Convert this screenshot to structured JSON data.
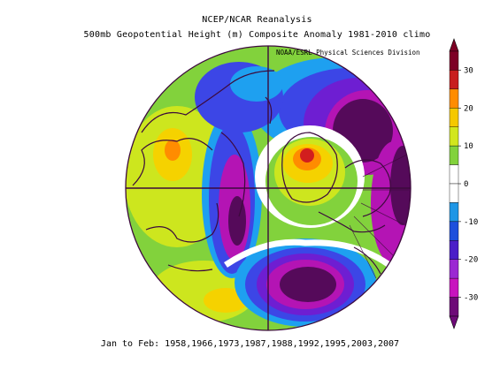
{
  "title_line1": "NCEP/NCAR Reanalysis",
  "title_line2": "500mb Geopotential Height (m) Composite Anomaly 1981-2010 climo",
  "credit": "NOAA/ESRL Physical Sciences Division",
  "footer": "Jan to Feb: 1958,1966,1973,1987,1988,1992,1995,2003,2007",
  "colorbar": {
    "ticks": [
      "30",
      "20",
      "10",
      "0",
      "-10",
      "-20",
      "-30"
    ],
    "colors": [
      "#7d0025",
      "#c81e1e",
      "#ff8c00",
      "#f5c800",
      "#d2e61e",
      "#82d23c",
      "#ffffff",
      "#ffffff",
      "#1e96e6",
      "#1e50dc",
      "#4b1ec8",
      "#9b28d2",
      "#c814be",
      "#6e0a78"
    ]
  },
  "map_colors": {
    "dark_purple": "#550a5a",
    "magenta": "#b414b4",
    "purple": "#6e1ed2",
    "blue": "#3c46e6",
    "light_blue": "#1ea0f0",
    "white": "#ffffff",
    "light_green": "#82d23c",
    "yellow_green": "#cde61e",
    "yellow": "#f5d200",
    "orange": "#ff8c00",
    "red": "#d21e1e",
    "land": "#3c0a3c"
  }
}
